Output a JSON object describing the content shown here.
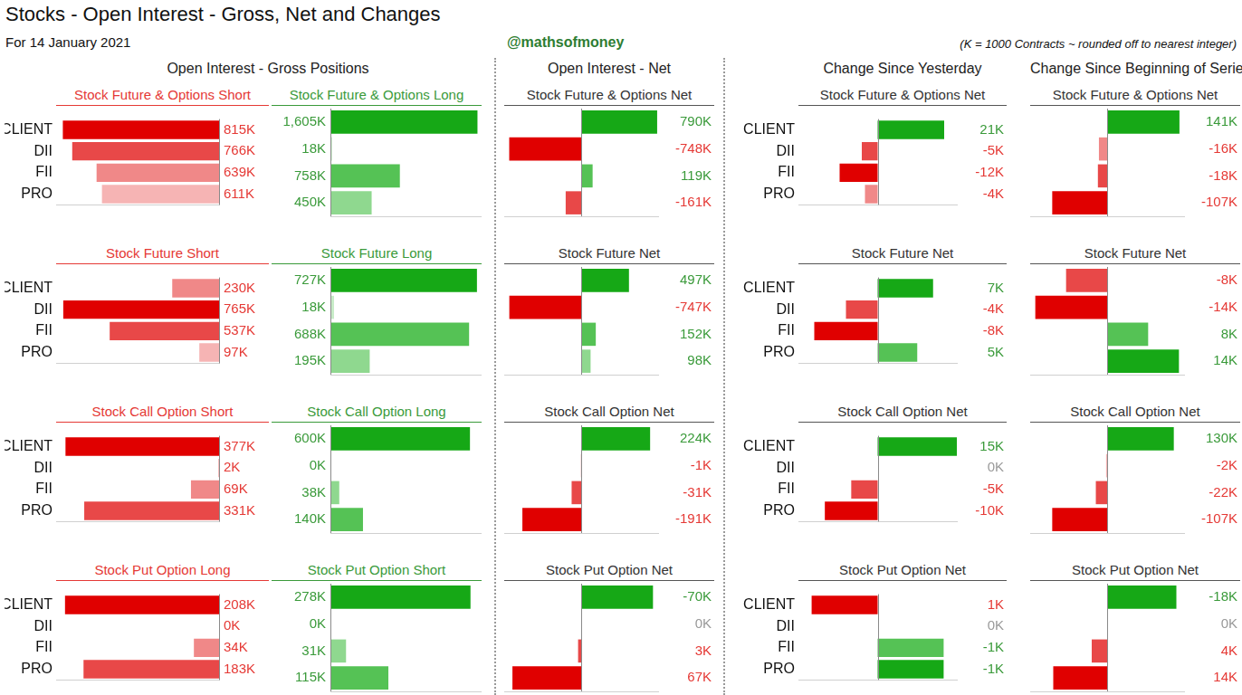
{
  "title": "Stocks - Open Interest - Gross, Net and Changes",
  "subtitle": "For 14 January 2021",
  "credit": "@mathsofmoney",
  "note": "(K = 1000 Contracts ~ rounded off to nearest integer)",
  "sections": [
    "Open Interest - Gross Positions",
    "Open Interest - Net",
    "Change Since Yesterday",
    "Change Since Beginning of Series"
  ],
  "chart_data": [
    {
      "type": "bar",
      "orientation": "horizontal",
      "title": "Stock Future & Options Short",
      "categories": [
        "CLIENT",
        "DII",
        "FII",
        "PRO"
      ],
      "values": [
        815,
        766,
        639,
        611
      ],
      "value_labels": [
        "815K",
        "766K",
        "639K",
        "611K"
      ],
      "colors": [
        "#e00000",
        "#e84848",
        "#f08888",
        "#f6b4b4"
      ],
      "xlim": [
        850,
        0
      ],
      "data_labels": true,
      "tick_labels": "y",
      "grid": false
    },
    {
      "type": "bar",
      "orientation": "horizontal",
      "title": "Stock Future & Options Long",
      "categories": [
        "CLIENT",
        "DII",
        "FII",
        "PRO"
      ],
      "values": [
        1605,
        18,
        758,
        450
      ],
      "value_labels": [
        "1,605K",
        "18K",
        "758K",
        "450K"
      ],
      "colors": [
        "#16a816",
        "#c8ecc8",
        "#55c255",
        "#8fd88f"
      ],
      "xlim": [
        0,
        1650
      ],
      "data_labels": true,
      "tick_labels": false,
      "grid": false
    },
    {
      "type": "bar",
      "orientation": "horizontal",
      "title": "Stock Future & Options Net",
      "categories": [
        "CLIENT",
        "DII",
        "FII",
        "PRO"
      ],
      "values": [
        790,
        -748,
        119,
        -161
      ],
      "value_labels": [
        "790K",
        "-748K",
        "119K",
        "-161K"
      ],
      "colors": [
        "#16a816",
        "#e00000",
        "#55c255",
        "#e84848"
      ],
      "xlim": [
        -800,
        800
      ],
      "data_labels": true,
      "tick_labels": false,
      "grid": false
    },
    {
      "type": "bar",
      "orientation": "horizontal",
      "title": "Stock Future & Options Net",
      "categories": [
        "CLIENT",
        "DII",
        "FII",
        "PRO"
      ],
      "values": [
        21,
        -5,
        -12,
        -4
      ],
      "value_labels": [
        "21K",
        "-5K",
        "-12K",
        "-4K"
      ],
      "colors": [
        "#16a816",
        "#e84848",
        "#e00000",
        "#f08888"
      ],
      "xlim": [
        -25,
        25
      ],
      "data_labels": true,
      "tick_labels": "y",
      "grid": false
    },
    {
      "type": "bar",
      "orientation": "horizontal",
      "title": "Stock Future & Options Net",
      "categories": [
        "CLIENT",
        "DII",
        "FII",
        "PRO"
      ],
      "values": [
        141,
        -16,
        -18,
        -107
      ],
      "value_labels": [
        "141K",
        "-16K",
        "-18K",
        "-107K"
      ],
      "colors": [
        "#16a816",
        "#f08888",
        "#e84848",
        "#e00000"
      ],
      "xlim": [
        -150,
        150
      ],
      "data_labels": true,
      "tick_labels": false,
      "grid": false
    },
    {
      "type": "bar",
      "orientation": "horizontal",
      "title": "Stock Future Short",
      "categories": [
        "CLIENT",
        "DII",
        "FII",
        "PRO"
      ],
      "values": [
        230,
        765,
        537,
        97
      ],
      "value_labels": [
        "230K",
        "765K",
        "537K",
        "97K"
      ],
      "colors": [
        "#f08888",
        "#e00000",
        "#e84848",
        "#f6b4b4"
      ],
      "xlim": [
        800,
        0
      ],
      "data_labels": true,
      "tick_labels": "y",
      "grid": false
    },
    {
      "type": "bar",
      "orientation": "horizontal",
      "title": "Stock Future Long",
      "categories": [
        "CLIENT",
        "DII",
        "FII",
        "PRO"
      ],
      "values": [
        727,
        18,
        688,
        195
      ],
      "value_labels": [
        "727K",
        "18K",
        "688K",
        "195K"
      ],
      "colors": [
        "#16a816",
        "#c8ecc8",
        "#55c255",
        "#8fd88f"
      ],
      "xlim": [
        0,
        750
      ],
      "data_labels": true,
      "tick_labels": false,
      "grid": false
    },
    {
      "type": "bar",
      "orientation": "horizontal",
      "title": "Stock Future Net",
      "categories": [
        "CLIENT",
        "DII",
        "FII",
        "PRO"
      ],
      "values": [
        497,
        -747,
        152,
        98
      ],
      "value_labels": [
        "497K",
        "-747K",
        "152K",
        "98K"
      ],
      "colors": [
        "#16a816",
        "#e00000",
        "#55c255",
        "#8fd88f"
      ],
      "xlim": [
        -800,
        800
      ],
      "data_labels": true,
      "tick_labels": false,
      "grid": false
    },
    {
      "type": "bar",
      "orientation": "horizontal",
      "title": "Stock Future Net",
      "categories": [
        "CLIENT",
        "DII",
        "FII",
        "PRO"
      ],
      "values": [
        7,
        -4,
        -8,
        5
      ],
      "value_labels": [
        "7K",
        "-4K",
        "-8K",
        "5K"
      ],
      "colors": [
        "#16a816",
        "#e84848",
        "#e00000",
        "#55c255"
      ],
      "xlim": [
        -10,
        10
      ],
      "data_labels": true,
      "tick_labels": "y",
      "grid": false
    },
    {
      "type": "bar",
      "orientation": "horizontal",
      "title": "Stock Future Net",
      "categories": [
        "CLIENT",
        "DII",
        "FII",
        "PRO"
      ],
      "values": [
        -8,
        -14,
        8,
        14
      ],
      "value_labels": [
        "-8K",
        "-14K",
        "8K",
        "14K"
      ],
      "colors": [
        "#e84848",
        "#e00000",
        "#55c255",
        "#16a816"
      ],
      "xlim": [
        -15,
        15
      ],
      "data_labels": true,
      "tick_labels": false,
      "grid": false
    },
    {
      "type": "bar",
      "orientation": "horizontal",
      "title": "Stock Call Option Short",
      "categories": [
        "CLIENT",
        "DII",
        "FII",
        "PRO"
      ],
      "values": [
        377,
        2,
        69,
        331
      ],
      "value_labels": [
        "377K",
        "2K",
        "69K",
        "331K"
      ],
      "colors": [
        "#e00000",
        "#f6b4b4",
        "#f08888",
        "#e84848"
      ],
      "xlim": [
        400,
        0
      ],
      "data_labels": true,
      "tick_labels": "y",
      "grid": false
    },
    {
      "type": "bar",
      "orientation": "horizontal",
      "title": "Stock Call Option Long",
      "categories": [
        "CLIENT",
        "DII",
        "FII",
        "PRO"
      ],
      "values": [
        600,
        0,
        38,
        140
      ],
      "value_labels": [
        "600K",
        "0K",
        "38K",
        "140K"
      ],
      "colors": [
        "#16a816",
        "#c8ecc8",
        "#8fd88f",
        "#55c255"
      ],
      "xlim": [
        0,
        650
      ],
      "data_labels": true,
      "tick_labels": false,
      "grid": false
    },
    {
      "type": "bar",
      "orientation": "horizontal",
      "title": "Stock Call Option Net",
      "categories": [
        "CLIENT",
        "DII",
        "FII",
        "PRO"
      ],
      "values": [
        224,
        -1,
        -31,
        -191
      ],
      "value_labels": [
        "224K",
        "-1K",
        "-31K",
        "-191K"
      ],
      "colors": [
        "#16a816",
        "#f6b4b4",
        "#e84848",
        "#e00000"
      ],
      "xlim": [
        -250,
        250
      ],
      "data_labels": true,
      "tick_labels": false,
      "grid": false
    },
    {
      "type": "bar",
      "orientation": "horizontal",
      "title": "Stock Call Option Net",
      "categories": [
        "CLIENT",
        "DII",
        "FII",
        "PRO"
      ],
      "values": [
        15,
        0,
        -5,
        -10
      ],
      "value_labels": [
        "15K",
        "0K",
        "-5K",
        "-10K"
      ],
      "colors": [
        "#16a816",
        "#f6b4b4",
        "#e84848",
        "#e00000"
      ],
      "xlim": [
        -15,
        15
      ],
      "data_labels": true,
      "tick_labels": "y",
      "grid": false
    },
    {
      "type": "bar",
      "orientation": "horizontal",
      "title": "Stock Call Option Net",
      "categories": [
        "CLIENT",
        "DII",
        "FII",
        "PRO"
      ],
      "values": [
        130,
        -2,
        -22,
        -107
      ],
      "value_labels": [
        "130K",
        "-2K",
        "-22K",
        "-107K"
      ],
      "colors": [
        "#16a816",
        "#f6b4b4",
        "#e84848",
        "#e00000"
      ],
      "xlim": [
        -150,
        150
      ],
      "data_labels": true,
      "tick_labels": false,
      "grid": false
    },
    {
      "type": "bar",
      "orientation": "horizontal",
      "title": "Stock Put Option Long",
      "categories": [
        "CLIENT",
        "DII",
        "FII",
        "PRO"
      ],
      "values": [
        208,
        0,
        34,
        183
      ],
      "value_labels": [
        "208K",
        "0K",
        "34K",
        "183K"
      ],
      "colors": [
        "#e00000",
        "#f6b4b4",
        "#f08888",
        "#e84848"
      ],
      "xlim": [
        220,
        0
      ],
      "data_labels": true,
      "tick_labels": "y",
      "grid": false
    },
    {
      "type": "bar",
      "orientation": "horizontal",
      "title": "Stock Put Option Short",
      "categories": [
        "CLIENT",
        "DII",
        "FII",
        "PRO"
      ],
      "values": [
        278,
        0,
        31,
        115
      ],
      "value_labels": [
        "278K",
        "0K",
        "31K",
        "115K"
      ],
      "colors": [
        "#16a816",
        "#c8ecc8",
        "#8fd88f",
        "#55c255"
      ],
      "xlim": [
        0,
        300
      ],
      "data_labels": true,
      "tick_labels": false,
      "grid": false
    },
    {
      "type": "bar",
      "orientation": "horizontal",
      "title": "Stock Put Option Net",
      "categories": [
        "CLIENT",
        "DII",
        "FII",
        "PRO"
      ],
      "values": [
        -70,
        0,
        3,
        67
      ],
      "value_labels": [
        "-70K",
        "0K",
        "3K",
        "67K"
      ],
      "colors": [
        "#16a816",
        "#f6b4b4",
        "#e84848",
        "#e00000"
      ],
      "xlim": [
        75,
        -75
      ],
      "data_labels": true,
      "tick_labels": false,
      "grid": false
    },
    {
      "type": "bar",
      "orientation": "horizontal",
      "title": "Stock Put Option Net",
      "categories": [
        "CLIENT",
        "DII",
        "FII",
        "PRO"
      ],
      "values": [
        1,
        0,
        -1,
        -1
      ],
      "value_labels": [
        "1K",
        "0K",
        "-1K",
        "-1K"
      ],
      "colors": [
        "#e00000",
        "#bbbbbb",
        "#55c255",
        "#16a816"
      ],
      "xlim": [
        1.2,
        -1.2
      ],
      "data_labels": true,
      "tick_labels": "y",
      "grid": false
    },
    {
      "type": "bar",
      "orientation": "horizontal",
      "title": "Stock Put Option Net",
      "categories": [
        "CLIENT",
        "DII",
        "FII",
        "PRO"
      ],
      "values": [
        -18,
        0,
        4,
        14
      ],
      "value_labels": [
        "-18K",
        "0K",
        "4K",
        "14K"
      ],
      "colors": [
        "#16a816",
        "#f6b4b4",
        "#e84848",
        "#e00000"
      ],
      "xlim": [
        20,
        -20
      ],
      "data_labels": true,
      "tick_labels": false,
      "grid": false
    }
  ]
}
